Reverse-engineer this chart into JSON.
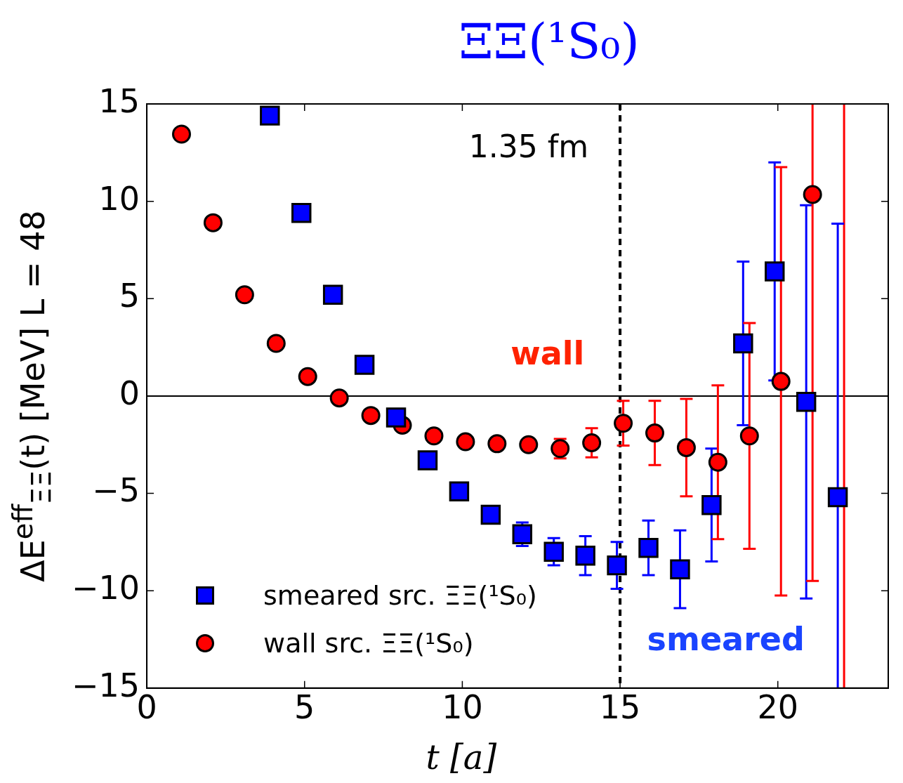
{
  "chart_data": {
    "type": "scatter",
    "title": "ΞΞ(¹S₀)",
    "xlabel": "t [a]",
    "ylabel": "ΔE$^{eff}$$_{ΞΞ}$(t) [MeV]  L = 48",
    "annotations": [
      "wall",
      "smeared"
    ],
    "xlim": [
      0,
      23.5
    ],
    "xticks": [
      0,
      5,
      10,
      15,
      20
    ],
    "ylim": [
      -15,
      15
    ],
    "yticks": [
      {
        "value": -15,
        "label": "−15"
      },
      {
        "value": -10,
        "label": "−10"
      },
      {
        "value": -5,
        "label": "−5"
      },
      0,
      5,
      10,
      15
    ],
    "grid": false,
    "legend": "bottom left",
    "ref_lines": [
      {
        "axis": "y",
        "value": 0,
        "color": "#000000",
        "line_style": "solid"
      },
      {
        "axis": "x",
        "value": 15,
        "label": "1.35 fm",
        "color": "#000000",
        "line_style": "dashed"
      },
      {
        "axis": "x",
        "value": 22.1,
        "color": "#ff0000",
        "line_style": "solid"
      }
    ],
    "series": [
      {
        "name": "smeared src.  ΞΞ(¹S₀)",
        "color": "#0000ff",
        "marker": "square",
        "x": [
          3.9,
          4.9,
          5.9,
          6.9,
          7.9,
          8.9,
          9.9,
          10.9,
          11.9,
          12.9,
          13.9,
          14.9,
          15.9,
          16.9,
          17.9,
          18.9,
          19.9,
          20.9,
          21.9
        ],
        "values": [
          14.4,
          9.4,
          5.2,
          1.6,
          -1.1,
          -3.3,
          -4.9,
          -6.1,
          -7.1,
          -8.0,
          -8.2,
          -8.7,
          -7.8,
          -8.9,
          -5.6,
          2.7,
          6.4,
          -0.3,
          -5.2
        ],
        "errors": [
          null,
          null,
          null,
          null,
          null,
          null,
          null,
          null,
          0.6,
          0.7,
          1.0,
          1.2,
          1.4,
          2.0,
          2.9,
          4.2,
          5.6,
          10.1,
          [
            -15,
            8.85
          ]
        ]
      },
      {
        "name": "wall src.  ΞΞ(¹S₀)",
        "color": "#ff0000",
        "marker": "circle",
        "x": [
          1.1,
          2.1,
          3.1,
          4.1,
          5.1,
          6.1,
          7.1,
          8.1,
          9.1,
          10.1,
          11.1,
          12.1,
          13.1,
          14.1,
          15.1,
          16.1,
          17.1,
          18.1,
          19.1,
          20.1,
          21.1
        ],
        "values": [
          13.45,
          8.9,
          5.2,
          2.7,
          1.0,
          -0.1,
          -1.0,
          -1.5,
          -2.05,
          -2.35,
          -2.45,
          -2.5,
          -2.7,
          -2.4,
          -1.4,
          -1.9,
          -2.65,
          -3.4,
          -2.05,
          0.75,
          10.35
        ],
        "errors": [
          null,
          null,
          null,
          null,
          null,
          null,
          null,
          null,
          null,
          null,
          null,
          null,
          0.5,
          0.75,
          1.15,
          1.65,
          2.5,
          3.95,
          5.8,
          11,
          [
            -9.5,
            15
          ]
        ]
      }
    ]
  }
}
